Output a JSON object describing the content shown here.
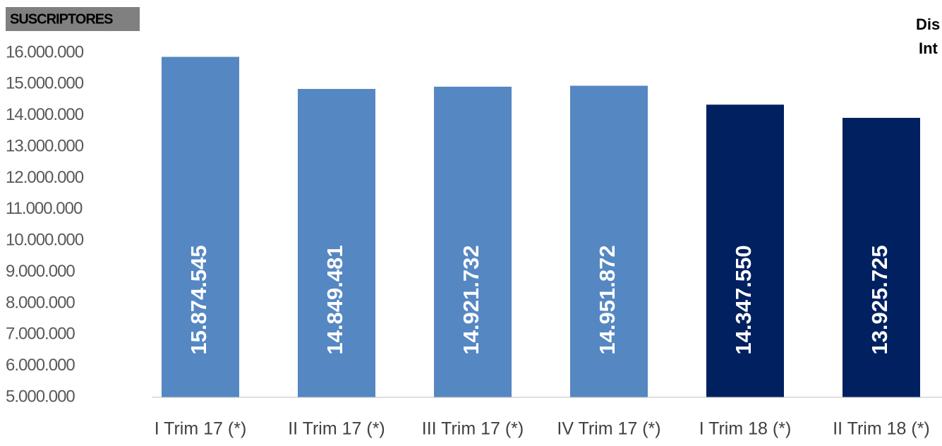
{
  "chart_data": {
    "type": "bar",
    "title": "SUSCRIPTORES",
    "annotations": [
      "Dis",
      "Int"
    ],
    "categories": [
      "I Trim 17 (*)",
      "II Trim 17 (*)",
      "III Trim 17 (*)",
      "IV Trim 17 (*)",
      "I Trim 18 (*)",
      "II Trim 18 (*)"
    ],
    "values": [
      15874545,
      14849481,
      14921732,
      14951872,
      14347550,
      13925725
    ],
    "value_labels": [
      "15.874.545",
      "14.849.481",
      "14.921.732",
      "14.951.872",
      "14.347.550",
      "13.925.725"
    ],
    "colors": [
      "#5587c2",
      "#5587c2",
      "#5587c2",
      "#5587c2",
      "#002060",
      "#002060"
    ],
    "ylim": [
      5000000,
      16000000
    ],
    "yticks": [
      {
        "value": 5000000,
        "label": "5.000.000"
      },
      {
        "value": 6000000,
        "label": "6.000.000"
      },
      {
        "value": 7000000,
        "label": "7.000.000"
      },
      {
        "value": 8000000,
        "label": "8.000.000"
      },
      {
        "value": 9000000,
        "label": "9.000.000"
      },
      {
        "value": 10000000,
        "label": "10.000.000"
      },
      {
        "value": 11000000,
        "label": "11.000.000"
      },
      {
        "value": 12000000,
        "label": "12.000.000"
      },
      {
        "value": 13000000,
        "label": "13.000.000"
      },
      {
        "value": 14000000,
        "label": "14.000.000"
      },
      {
        "value": 15000000,
        "label": "15.000.000"
      },
      {
        "value": 16000000,
        "label": "16.000.000"
      }
    ],
    "grid": false
  }
}
